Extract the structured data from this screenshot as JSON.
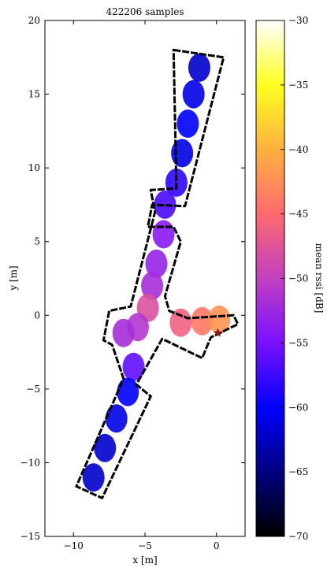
{
  "chart_data": [
    {
      "type": "heatmap",
      "title": "422206 samples",
      "xlabel": "x [m]",
      "ylabel": "y [m]",
      "xlim": [
        -12,
        2
      ],
      "ylim": [
        -15,
        20
      ],
      "xticks": [
        -10,
        -5,
        0
      ],
      "xtick_labels": [
        "−10",
        "−5",
        "0"
      ],
      "yticks": [
        -15,
        -10,
        -5,
        0,
        5,
        10,
        15,
        20
      ],
      "ytick_labels": [
        "−15",
        "−10",
        "−5",
        "0",
        "5",
        "10",
        "15",
        "20"
      ],
      "grid": false,
      "colormap": "gnuplot2",
      "marker": {
        "x": 0.1,
        "y": -1.2,
        "symbol": "star",
        "color": "#cc0000"
      },
      "building_outline": [
        [
          -3.0,
          18.0
        ],
        [
          0.5,
          17.5
        ],
        [
          -2.2,
          7.4
        ],
        [
          -4.5,
          7.5
        ],
        [
          -4.8,
          6.0
        ],
        [
          -3.0,
          6.0
        ],
        [
          -2.5,
          5.0
        ],
        [
          -3.6,
          1.3
        ],
        [
          -3.3,
          0.3
        ],
        [
          -2.0,
          -0.2
        ],
        [
          1.2,
          0.0
        ],
        [
          1.5,
          -0.6
        ],
        [
          -0.4,
          -1.5
        ],
        [
          -1.0,
          -2.9
        ],
        [
          -3.8,
          -1.6
        ],
        [
          -5.6,
          -4.7
        ],
        [
          -4.6,
          -5.5
        ],
        [
          -8.0,
          -12.4
        ],
        [
          -9.8,
          -11.6
        ],
        [
          -6.5,
          -4.3
        ],
        [
          -7.3,
          -2.0
        ],
        [
          -7.9,
          -1.7
        ],
        [
          -7.5,
          0.3
        ],
        [
          -6.0,
          0.6
        ],
        [
          -4.3,
          7.0
        ],
        [
          -4.6,
          8.5
        ],
        [
          -2.8,
          8.6
        ]
      ],
      "samples": [
        {
          "x": -1.2,
          "y": 16.8,
          "v": -62
        },
        {
          "x": -1.6,
          "y": 15.0,
          "v": -61
        },
        {
          "x": -2.0,
          "y": 13.0,
          "v": -60
        },
        {
          "x": -2.4,
          "y": 11.0,
          "v": -61
        },
        {
          "x": -2.8,
          "y": 9.0,
          "v": -58
        },
        {
          "x": -3.6,
          "y": 7.5,
          "v": -57
        },
        {
          "x": -3.7,
          "y": 5.5,
          "v": -54
        },
        {
          "x": -4.2,
          "y": 3.5,
          "v": -53
        },
        {
          "x": -4.5,
          "y": 2.0,
          "v": -52
        },
        {
          "x": -4.8,
          "y": 0.5,
          "v": -48
        },
        {
          "x": -5.5,
          "y": -0.8,
          "v": -51
        },
        {
          "x": -6.5,
          "y": -1.2,
          "v": -52
        },
        {
          "x": -2.5,
          "y": -0.5,
          "v": -46
        },
        {
          "x": -1.0,
          "y": -0.4,
          "v": -44
        },
        {
          "x": 0.2,
          "y": -0.3,
          "v": -42
        },
        {
          "x": -5.8,
          "y": -3.5,
          "v": -56
        },
        {
          "x": -6.2,
          "y": -5.2,
          "v": -60
        },
        {
          "x": -7.0,
          "y": -7.0,
          "v": -61
        },
        {
          "x": -7.8,
          "y": -9.0,
          "v": -62
        },
        {
          "x": -8.6,
          "y": -11.0,
          "v": -62
        }
      ],
      "colorbar": {
        "label": "mean rssi [dB]",
        "range": [
          -70,
          -30
        ],
        "ticks": [
          -70,
          -65,
          -60,
          -55,
          -50,
          -45,
          -40,
          -35,
          -30
        ],
        "tick_labels": [
          "−70",
          "−65",
          "−60",
          "−55",
          "−50",
          "−45",
          "−40",
          "−35",
          "−30"
        ],
        "stops": [
          "#000000",
          "#000080",
          "#0000ff",
          "#7a10ff",
          "#c040c0",
          "#ff6a70",
          "#ffb040",
          "#ffff20",
          "#ffffff"
        ]
      }
    }
  ]
}
